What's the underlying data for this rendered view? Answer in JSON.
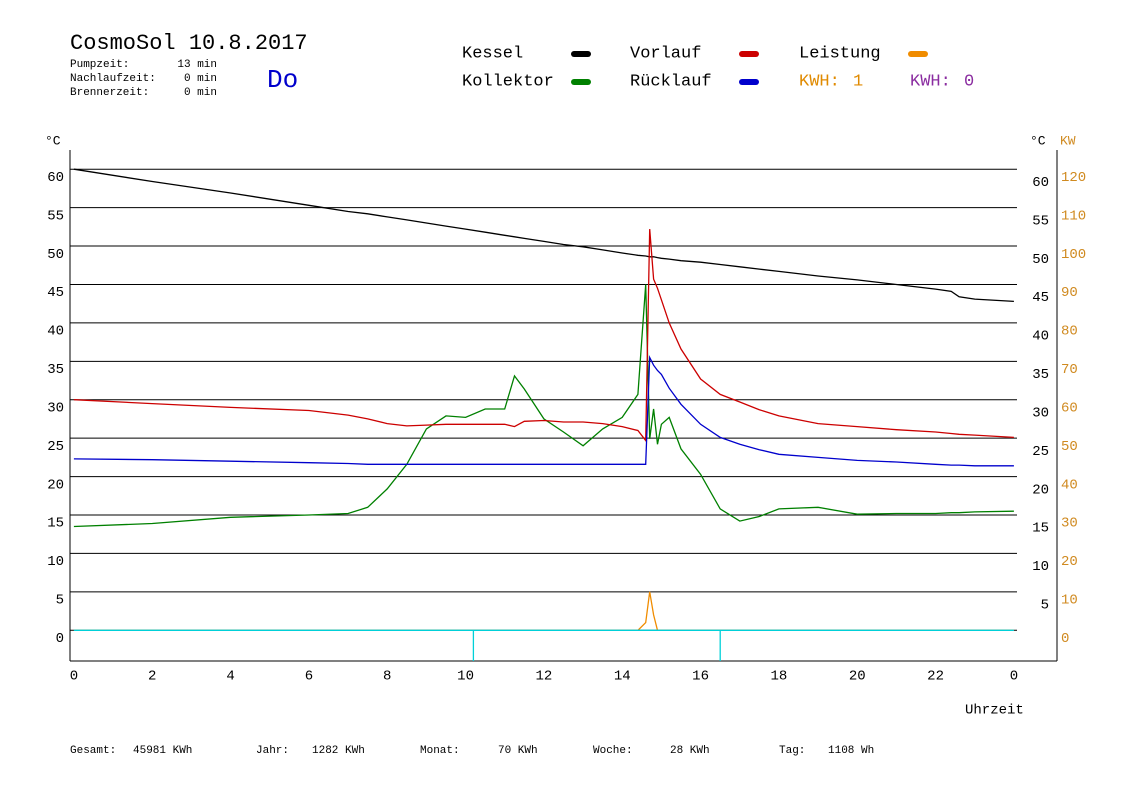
{
  "chart_data": {
    "type": "line",
    "title": "CosmoSol 10.8.2017",
    "day": "Do",
    "info": [
      {
        "label": "Pumpzeit:",
        "value": "13 min"
      },
      {
        "label": "Nachlaufzeit:",
        "value": "0 min"
      },
      {
        "label": "Brennerzeit:",
        "value": "0 min"
      }
    ],
    "kwh": [
      {
        "label": "KWH:",
        "value": 1,
        "color": "#e08a00"
      },
      {
        "label": "KWH:",
        "value": 0,
        "color": "#8a2ca0"
      }
    ],
    "y_label": "°C",
    "y2_label_left": "°C",
    "y2_label": "KW",
    "x_label": "Uhrzeit",
    "x": [
      0,
      2,
      4,
      6,
      7,
      7.5,
      8,
      8.5,
      9,
      9.5,
      10,
      10.5,
      11,
      11.25,
      11.5,
      12,
      12.5,
      13,
      13.5,
      14,
      14.4,
      14.6,
      14.7,
      14.8,
      14.9,
      15,
      15.2,
      15.5,
      16,
      16.5,
      17,
      17.5,
      18,
      19,
      20,
      21,
      22,
      22.4,
      22.6,
      23,
      24
    ],
    "series": [
      {
        "name": "Kessel",
        "color": "#000000",
        "values": [
          60,
          58.4,
          56.9,
          55.3,
          54.5,
          54.2,
          53.8,
          53.4,
          53,
          52.6,
          52.2,
          51.8,
          51.4,
          51.2,
          51,
          50.6,
          50.2,
          49.9,
          49.5,
          49.1,
          48.8,
          48.7,
          48.6,
          48.6,
          48.5,
          48.4,
          48.3,
          48.1,
          47.9,
          47.6,
          47.3,
          47,
          46.7,
          46.1,
          45.6,
          45,
          44.4,
          44.1,
          43.4,
          43.1,
          42.8
        ]
      },
      {
        "name": "Kollektor",
        "color": "#008000",
        "values": [
          13.5,
          13.9,
          14.7,
          15,
          15.2,
          16,
          18.4,
          21.6,
          26.2,
          27.9,
          27.7,
          28.8,
          28.8,
          33.1,
          31.4,
          27.5,
          25.8,
          24,
          26.2,
          27.7,
          30.7,
          45,
          24.9,
          28.8,
          24.2,
          26.8,
          27.7,
          23.6,
          20.3,
          15.8,
          14.2,
          14.8,
          15.8,
          16,
          15.1,
          15.2,
          15.2,
          15.3,
          15.3,
          15.4,
          15.5
        ]
      },
      {
        "name": "Vorlauf",
        "color": "#cc0000",
        "values": [
          30,
          29.5,
          29,
          28.6,
          28,
          27.5,
          26.9,
          26.6,
          26.7,
          26.8,
          26.8,
          26.8,
          26.8,
          26.5,
          27.2,
          27.3,
          27.1,
          27.1,
          26.9,
          26.5,
          26,
          24.7,
          52.2,
          45.7,
          44.5,
          43,
          40,
          36.6,
          32.7,
          30.7,
          29.7,
          28.7,
          27.9,
          26.9,
          26.5,
          26.1,
          25.8,
          25.6,
          25.5,
          25.4,
          25.1
        ]
      },
      {
        "name": "Rücklauf",
        "color": "#0000cc",
        "values": [
          22.3,
          22.2,
          22,
          21.8,
          21.7,
          21.6,
          21.6,
          21.6,
          21.6,
          21.6,
          21.6,
          21.6,
          21.6,
          21.6,
          21.6,
          21.6,
          21.6,
          21.6,
          21.6,
          21.6,
          21.6,
          21.6,
          35.5,
          34.5,
          33.8,
          33.3,
          31.5,
          29.4,
          26.8,
          25.1,
          24.2,
          23.5,
          22.9,
          22.5,
          22.1,
          21.9,
          21.6,
          21.5,
          21.5,
          21.4,
          21.4
        ]
      },
      {
        "name": "Leistung",
        "color": "#f08c00",
        "axis": "y2",
        "values": [
          0,
          0,
          0,
          0,
          0,
          0,
          0,
          0,
          0,
          0,
          0,
          0,
          0,
          0,
          0,
          0,
          0,
          0,
          0,
          0,
          0,
          2,
          10,
          4,
          0,
          0,
          0,
          0,
          0,
          0,
          0,
          0,
          0,
          0,
          0,
          0,
          0,
          0,
          0,
          0,
          0
        ]
      },
      {
        "color": "#00d0d8",
        "x": [
          0,
          10.2,
          10.2,
          10.2,
          16.5,
          16.5,
          16.5,
          24
        ],
        "values": [
          0,
          0,
          -4,
          0,
          0,
          -4,
          0,
          0
        ]
      }
    ],
    "xlim": [
      -0.1,
      25.1
    ],
    "xticks": [
      0,
      2,
      4,
      6,
      8,
      10,
      12,
      14,
      16,
      18,
      20,
      22,
      {
        "value": 24,
        "label": "0"
      }
    ],
    "ylim": [
      -4,
      62.5
    ],
    "yticks": [
      0,
      5,
      10,
      15,
      20,
      25,
      30,
      35,
      40,
      45,
      50,
      55,
      60
    ],
    "yticks_right": [
      5,
      10,
      15,
      20,
      25,
      30,
      35,
      40,
      45,
      50,
      55,
      60
    ],
    "y2lim": [
      -8,
      125
    ],
    "y2ticks": [
      0,
      10,
      20,
      30,
      40,
      50,
      60,
      70,
      80,
      90,
      100,
      110,
      120
    ],
    "grid": true,
    "totals": [
      {
        "label": "Gesamt:",
        "value": "45981 KWh"
      },
      {
        "label": "Jahr:",
        "value": "1282 KWh"
      },
      {
        "label": "Monat:",
        "value": "70 KWh"
      },
      {
        "label": "Woche:",
        "value": "28 KWh"
      },
      {
        "label": "Tag:",
        "value": "1108 Wh"
      }
    ]
  }
}
